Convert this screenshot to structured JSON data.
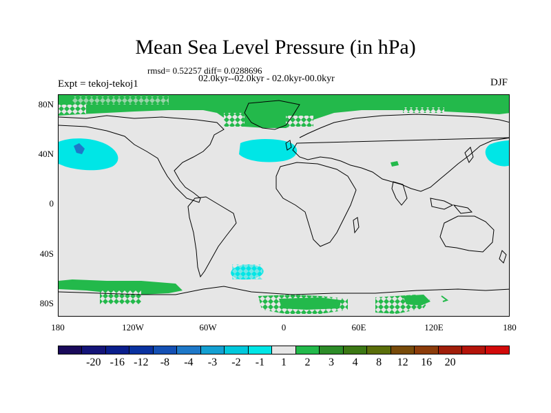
{
  "title": "Mean Sea Level Pressure (in hPa)",
  "stats": "rmsd= 0.52257 diff= 0.0288696",
  "period": "02.0kyr--02.0kyr - 02.0kyr-00.0kyr",
  "experiment": "Expt = tekoj-tekoj1",
  "season": "DJF",
  "lat_labels": [
    "80N",
    "40N",
    "0",
    "40S",
    "80S"
  ],
  "lon_labels": [
    "180",
    "120W",
    "60W",
    "0",
    "60E",
    "120E",
    "180"
  ],
  "colorbar": {
    "colors": [
      "#1a0a5a",
      "#141478",
      "#0a1e8c",
      "#0a32a0",
      "#1450b4",
      "#1e78c8",
      "#14a0d2",
      "#00c8dc",
      "#00e6e6",
      "#e6e6e6",
      "#23b94b",
      "#2d8c28",
      "#3c7814",
      "#5a6e0a",
      "#784b0a",
      "#8c3c0a",
      "#a01e0a",
      "#b4140a",
      "#d20a0a"
    ],
    "labels": [
      "-20",
      "-16",
      "-12",
      "-8",
      "-4",
      "-3",
      "-2",
      "-1",
      "1",
      "2",
      "3",
      "4",
      "8",
      "12",
      "16",
      "20"
    ]
  },
  "colors": {
    "background": "#e6e6e6",
    "positive": "#23b94b",
    "negative": "#00e6e6",
    "coast": "#000000"
  }
}
